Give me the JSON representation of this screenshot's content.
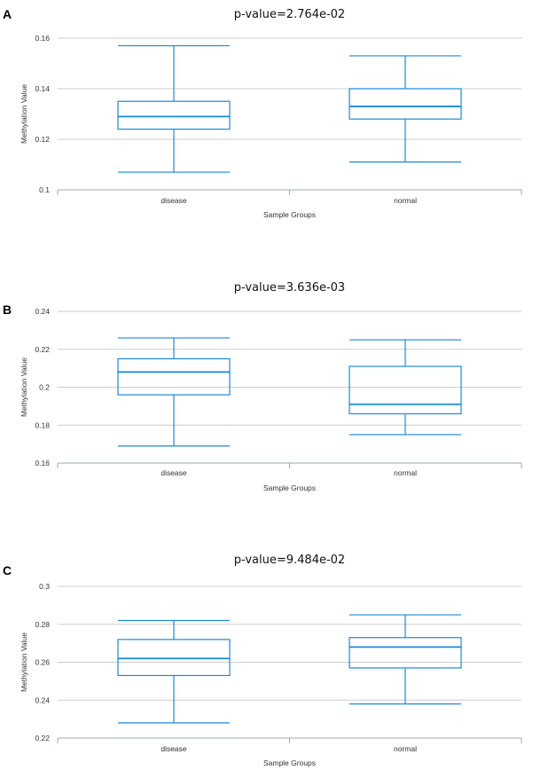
{
  "chart_data": [
    {
      "type": "box",
      "panel_label": "A",
      "title": "p-value=2.764e-02",
      "xlabel": "Sample Groups",
      "ylabel": "Methylation Value",
      "ylim": [
        0.1,
        0.16
      ],
      "yticks": [
        0.1,
        0.12,
        0.14,
        0.16
      ],
      "ytick_labels": [
        "0.1",
        "0.12",
        "0.14",
        "0.16"
      ],
      "grid": true,
      "color": "#1a8ad8",
      "categories": [
        "disease",
        "normal"
      ],
      "boxes": [
        {
          "group": "disease",
          "min": 0.107,
          "q1": 0.124,
          "median": 0.129,
          "q3": 0.135,
          "max": 0.157
        },
        {
          "group": "normal",
          "min": 0.111,
          "q1": 0.128,
          "median": 0.133,
          "q3": 0.14,
          "max": 0.153
        }
      ]
    },
    {
      "type": "box",
      "panel_label": "B",
      "title": "p-value=3.636e-03",
      "xlabel": "Sample Groups",
      "ylabel": "Methylation Value",
      "ylim": [
        0.16,
        0.24
      ],
      "yticks": [
        0.16,
        0.18,
        0.2,
        0.22,
        0.24
      ],
      "ytick_labels": [
        "0.16",
        "0.18",
        "0.2",
        "0.22",
        "0.24"
      ],
      "grid": true,
      "color": "#1a8ad8",
      "categories": [
        "disease",
        "normal"
      ],
      "boxes": [
        {
          "group": "disease",
          "min": 0.169,
          "q1": 0.196,
          "median": 0.208,
          "q3": 0.215,
          "max": 0.226
        },
        {
          "group": "normal",
          "min": 0.175,
          "q1": 0.186,
          "median": 0.191,
          "q3": 0.211,
          "max": 0.225
        }
      ]
    },
    {
      "type": "box",
      "panel_label": "C",
      "title": "p-value=9.484e-02",
      "xlabel": "Sample Groups",
      "ylabel": "Methylation Value",
      "ylim": [
        0.22,
        0.3
      ],
      "yticks": [
        0.22,
        0.24,
        0.26,
        0.28,
        0.3
      ],
      "ytick_labels": [
        "0.22",
        "0.24",
        "0.26",
        "0.28",
        "0.3"
      ],
      "grid": true,
      "color": "#1a8ad8",
      "categories": [
        "disease",
        "normal"
      ],
      "boxes": [
        {
          "group": "disease",
          "min": 0.228,
          "q1": 0.253,
          "median": 0.262,
          "q3": 0.272,
          "max": 0.282
        },
        {
          "group": "normal",
          "min": 0.238,
          "q1": 0.257,
          "median": 0.268,
          "q3": 0.273,
          "max": 0.285
        }
      ]
    }
  ]
}
